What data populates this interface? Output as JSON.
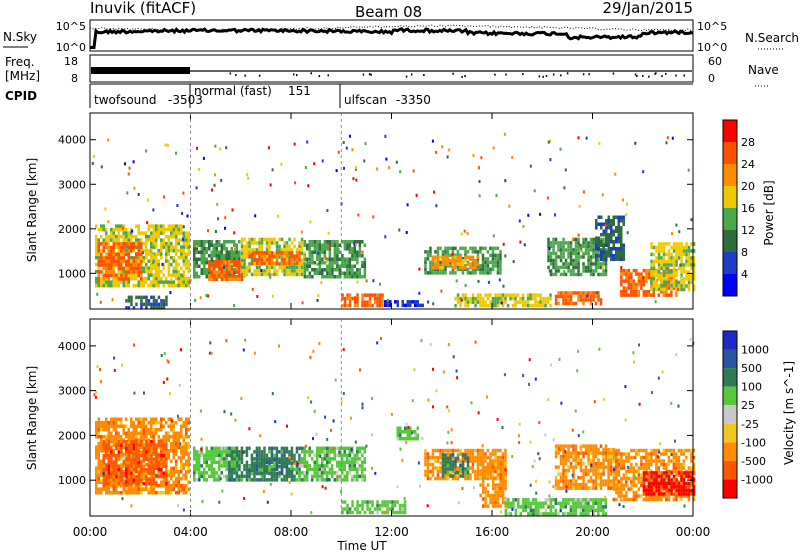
{
  "header": {
    "station": "Inuvik (fitACF)",
    "beam": "Beam 08",
    "date": "29/Jan/2015"
  },
  "noise_panel": {
    "left_label": "N.Sky",
    "right_label": "N.Search",
    "left_ticks": [
      "10^5",
      "10^0"
    ],
    "right_ticks": [
      "10^5",
      "10^0"
    ]
  },
  "freq_panel": {
    "left_label_1": "Freq.",
    "left_label_2": "[MHz]",
    "left_ticks": [
      "18",
      "8"
    ],
    "right_label": "Nave",
    "right_ticks": [
      "60",
      "0"
    ]
  },
  "cpid_panel": {
    "label": "CPID",
    "modes": [
      {
        "name": "twofsound",
        "id": "-3503",
        "start_hour": 0
      },
      {
        "name": "normal (fast)",
        "id": "151",
        "start_hour": 4
      },
      {
        "name": "ulfscan",
        "id": "-3350",
        "start_hour": 10
      }
    ]
  },
  "time_axis": {
    "xlabel": "Time UT",
    "ticks": [
      "00:00",
      "04:00",
      "08:00",
      "12:00",
      "16:00",
      "20:00",
      "00:00"
    ]
  },
  "colors": {
    "power": [
      "#0000ff",
      "#1e3cc8",
      "#2f6e3c",
      "#4aa84a",
      "#f0c800",
      "#ff8c00",
      "#ff5000",
      "#ff0000"
    ],
    "velocity": [
      "#1e28c8",
      "#2855a0",
      "#2f7a55",
      "#55c83c",
      "#c8c8c8",
      "#f0c81e",
      "#ff8c00",
      "#ff5500",
      "#ff0000"
    ]
  },
  "chart_data": [
    {
      "type": "heatmap",
      "name": "power-panel",
      "ylabel": "Slant Range [km]",
      "xlabel": "",
      "xlim": [
        0,
        24
      ],
      "ylim": [
        200,
        4600
      ],
      "yticks": [
        1000,
        2000,
        3000,
        4000
      ],
      "colorbar": {
        "label": "Power [dB]",
        "range": [
          0,
          32
        ],
        "ticks": [
          "4",
          "8",
          "12",
          "16",
          "20",
          "24",
          "28"
        ]
      },
      "regions": [
        {
          "t0": 0.2,
          "t1": 3.9,
          "r0": 700,
          "r1": 2100,
          "level": 20
        },
        {
          "t0": 0.3,
          "t1": 2.0,
          "r0": 900,
          "r1": 1700,
          "level": 26
        },
        {
          "t0": 4.1,
          "t1": 5.9,
          "r0": 900,
          "r1": 1750,
          "level": 16
        },
        {
          "t0": 4.7,
          "t1": 6.1,
          "r0": 900,
          "r1": 1300,
          "level": 29
        },
        {
          "t0": 6.0,
          "t1": 8.5,
          "r0": 1000,
          "r1": 1800,
          "level": 18
        },
        {
          "t0": 6.3,
          "t1": 8.3,
          "r0": 1200,
          "r1": 1500,
          "level": 27
        },
        {
          "t0": 8.5,
          "t1": 10.9,
          "r0": 900,
          "r1": 1750,
          "level": 17
        },
        {
          "t0": 10.0,
          "t1": 11.6,
          "r0": 250,
          "r1": 550,
          "level": 26
        },
        {
          "t0": 11.7,
          "t1": 13.2,
          "r0": 250,
          "r1": 400,
          "level": 8
        },
        {
          "t0": 13.3,
          "t1": 16.3,
          "r0": 1000,
          "r1": 1600,
          "level": 14
        },
        {
          "t0": 13.6,
          "t1": 15.4,
          "r0": 1150,
          "r1": 1400,
          "level": 24
        },
        {
          "t0": 14.5,
          "t1": 18.3,
          "r0": 250,
          "r1": 550,
          "level": 20
        },
        {
          "t0": 18.5,
          "t1": 20.3,
          "r0": 300,
          "r1": 600,
          "level": 28
        },
        {
          "t0": 18.2,
          "t1": 20.5,
          "r0": 1000,
          "r1": 1800,
          "level": 14
        },
        {
          "t0": 20.1,
          "t1": 21.2,
          "r0": 1300,
          "r1": 2300,
          "level": 12
        },
        {
          "t0": 21.1,
          "t1": 23.3,
          "r0": 500,
          "r1": 1100,
          "level": 29
        },
        {
          "t0": 22.3,
          "t1": 24.0,
          "r0": 600,
          "r1": 1700,
          "level": 20
        },
        {
          "t0": 1.4,
          "t1": 3.0,
          "r0": 250,
          "r1": 500,
          "level": 12
        }
      ]
    },
    {
      "type": "heatmap",
      "name": "velocity-panel",
      "ylabel": "Slant Range [km]",
      "xlabel": "Time UT",
      "xlim": [
        0,
        24
      ],
      "ylim": [
        200,
        4600
      ],
      "yticks": [
        1000,
        2000,
        3000,
        4000
      ],
      "colorbar": {
        "label": "Velocity [m s^-1]",
        "ticks": [
          "1000",
          "500",
          "100",
          "25",
          "-25",
          "-100",
          "-500",
          "-1000"
        ]
      },
      "regions": [
        {
          "t0": 0.2,
          "t1": 3.9,
          "r0": 700,
          "r1": 2400,
          "level": 6
        },
        {
          "t0": 0.5,
          "t1": 3.0,
          "r0": 900,
          "r1": 1900,
          "level": 7
        },
        {
          "t0": 4.1,
          "t1": 5.9,
          "r0": 1000,
          "r1": 1750,
          "level": 3
        },
        {
          "t0": 5.5,
          "t1": 8.3,
          "r0": 1000,
          "r1": 1750,
          "level": 2
        },
        {
          "t0": 8.3,
          "t1": 10.9,
          "r0": 1000,
          "r1": 1750,
          "level": 3
        },
        {
          "t0": 6.3,
          "t1": 8.0,
          "r0": 1150,
          "r1": 1500,
          "level": 2
        },
        {
          "t0": 10.0,
          "t1": 12.5,
          "r0": 250,
          "r1": 550,
          "level": 3
        },
        {
          "t0": 13.3,
          "t1": 16.5,
          "r0": 1000,
          "r1": 1700,
          "level": 6
        },
        {
          "t0": 14.0,
          "t1": 15.0,
          "r0": 1100,
          "r1": 1600,
          "level": 2
        },
        {
          "t0": 15.5,
          "t1": 16.5,
          "r0": 400,
          "r1": 1400,
          "level": 6
        },
        {
          "t0": 16.5,
          "t1": 20.5,
          "r0": 250,
          "r1": 600,
          "level": 3
        },
        {
          "t0": 18.5,
          "t1": 21.0,
          "r0": 800,
          "r1": 1800,
          "level": 6
        },
        {
          "t0": 20.8,
          "t1": 24.0,
          "r0": 600,
          "r1": 1700,
          "level": 6
        },
        {
          "t0": 22.0,
          "t1": 24.0,
          "r0": 700,
          "r1": 1200,
          "level": 8
        },
        {
          "t0": 12.2,
          "t1": 13.0,
          "r0": 1900,
          "r1": 2200,
          "level": 3
        }
      ]
    }
  ]
}
